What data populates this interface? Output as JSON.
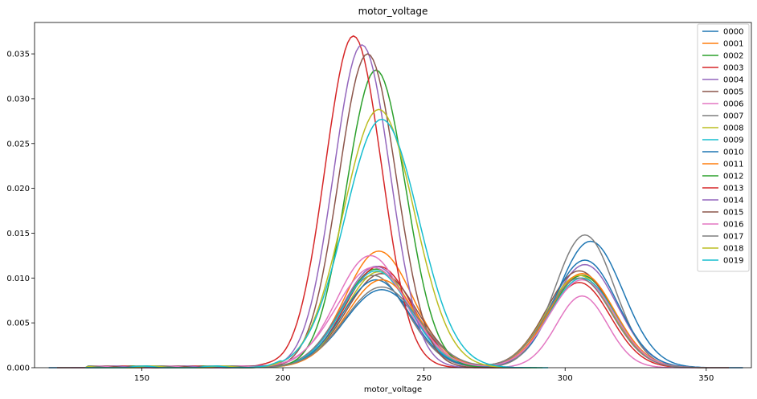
{
  "chart_data": {
    "type": "line",
    "title": "motor_voltage",
    "xlabel": "motor_voltage",
    "ylabel": "",
    "xlim": [
      112,
      366
    ],
    "ylim": [
      0,
      0.0385
    ],
    "xticks": [
      150,
      200,
      250,
      300,
      350
    ],
    "yticks": [
      0.0,
      0.005,
      0.01,
      0.015,
      0.02,
      0.025,
      0.03,
      0.035
    ],
    "ytick_labels": [
      "0.000",
      "0.005",
      "0.010",
      "0.015",
      "0.020",
      "0.025",
      "0.030",
      "0.035"
    ],
    "grid": false,
    "legend_position": "top-right",
    "series": [
      {
        "name": "0000",
        "color": "#1f77b4",
        "peak1": {
          "mu": 235,
          "sigma": 13,
          "h": 0.0087
        },
        "peak2": {
          "mu": 309,
          "sigma": 11.5,
          "h": 0.0141
        },
        "xmin": 117,
        "xmax": 363
      },
      {
        "name": "0001",
        "color": "#ff7f0e",
        "peak1": {
          "mu": 234,
          "sigma": 12,
          "h": 0.013
        },
        "peak2": {
          "mu": 306,
          "sigma": 11.5,
          "h": 0.0103
        },
        "xmin": 120,
        "xmax": 358
      },
      {
        "name": "0002",
        "color": "#2ca02c",
        "peak1": {
          "mu": 233,
          "sigma": 12,
          "h": 0.011
        },
        "peak2": {
          "mu": 306,
          "sigma": 11.5,
          "h": 0.0103
        },
        "xmin": 120,
        "xmax": 358
      },
      {
        "name": "0003",
        "color": "#d62728",
        "peak1": {
          "mu": 234,
          "sigma": 12,
          "h": 0.0113
        },
        "peak2": {
          "mu": 305,
          "sigma": 11,
          "h": 0.0095
        },
        "xmin": 120,
        "xmax": 358
      },
      {
        "name": "0004",
        "color": "#9467bd",
        "peak1": {
          "mu": 233,
          "sigma": 12,
          "h": 0.0113
        },
        "peak2": {
          "mu": 307,
          "sigma": 11.5,
          "h": 0.0115
        },
        "xmin": 120,
        "xmax": 358
      },
      {
        "name": "0005",
        "color": "#8c564b",
        "peak1": {
          "mu": 235,
          "sigma": 12.5,
          "h": 0.0105
        },
        "peak2": {
          "mu": 305,
          "sigma": 11.5,
          "h": 0.0108
        },
        "xmin": 120,
        "xmax": 358
      },
      {
        "name": "0006",
        "color": "#e377c2",
        "peak1": {
          "mu": 231,
          "sigma": 12,
          "h": 0.0125
        },
        "peak2": {
          "mu": 306,
          "sigma": 9,
          "h": 0.008
        },
        "xmin": 120,
        "xmax": 358
      },
      {
        "name": "0007",
        "color": "#7f7f7f",
        "peak1": {
          "mu": 232,
          "sigma": 12,
          "h": 0.0103
        },
        "peak2": {
          "mu": 307,
          "sigma": 10.5,
          "h": 0.0148
        },
        "xmin": 120,
        "xmax": 358
      },
      {
        "name": "0008",
        "color": "#bcbd22",
        "peak1": {
          "mu": 234,
          "sigma": 12,
          "h": 0.0107
        },
        "peak2": {
          "mu": 305,
          "sigma": 11.5,
          "h": 0.0103
        },
        "xmin": 120,
        "xmax": 358
      },
      {
        "name": "0009",
        "color": "#17becf",
        "peak1": {
          "mu": 233,
          "sigma": 12,
          "h": 0.0108
        },
        "peak2": {
          "mu": 306,
          "sigma": 11.5,
          "h": 0.01
        },
        "xmin": 120,
        "xmax": 358
      },
      {
        "name": "0010",
        "color": "#1f77b4",
        "peak1": {
          "mu": 233,
          "sigma": 12,
          "h": 0.0098
        },
        "peak2": {
          "mu": 307,
          "sigma": 11.5,
          "h": 0.012
        },
        "xmin": 120,
        "xmax": 358
      },
      {
        "name": "0011",
        "color": "#ff7f0e",
        "peak1": {
          "mu": 235,
          "sigma": 12.5,
          "h": 0.0098
        },
        "peak2": {
          "mu": 306,
          "sigma": 11.5,
          "h": 0.0105
        },
        "xmin": 120,
        "xmax": 358
      },
      {
        "name": "0012",
        "color": "#2ca02c",
        "peak1": {
          "mu": 233,
          "sigma": 10.5,
          "h": 0.0332
        },
        "peak2": {
          "mu": 260,
          "sigma": 6,
          "h": 0.0
        },
        "xmin": 130,
        "xmax": 290
      },
      {
        "name": "0013",
        "color": "#d62728",
        "peak1": {
          "mu": 225,
          "sigma": 10,
          "h": 0.037
        },
        "peak2": {
          "mu": 260,
          "sigma": 6,
          "h": 0.0
        },
        "xmin": 125,
        "xmax": 285
      },
      {
        "name": "0014",
        "color": "#9467bd",
        "peak1": {
          "mu": 228,
          "sigma": 10,
          "h": 0.036
        },
        "peak2": {
          "mu": 260,
          "sigma": 6,
          "h": 0.0
        },
        "xmin": 125,
        "xmax": 285
      },
      {
        "name": "0015",
        "color": "#8c564b",
        "peak1": {
          "mu": 230,
          "sigma": 10.2,
          "h": 0.035
        },
        "peak2": {
          "mu": 260,
          "sigma": 6,
          "h": 0.0
        },
        "xmin": 125,
        "xmax": 288
      },
      {
        "name": "0016",
        "color": "#e377c2",
        "peak1": {
          "mu": 232,
          "sigma": 13,
          "h": 0.0112
        },
        "peak2": {
          "mu": 306,
          "sigma": 11.5,
          "h": 0.0098
        },
        "xmin": 120,
        "xmax": 358
      },
      {
        "name": "0017",
        "color": "#7f7f7f",
        "peak1": {
          "mu": 235,
          "sigma": 13,
          "h": 0.009
        },
        "peak2": {
          "mu": 305,
          "sigma": 11.5,
          "h": 0.01
        },
        "xmin": 120,
        "xmax": 358
      },
      {
        "name": "0018",
        "color": "#bcbd22",
        "peak1": {
          "mu": 234,
          "sigma": 12.5,
          "h": 0.0288
        },
        "peak2": {
          "mu": 262,
          "sigma": 6,
          "h": 0.0
        },
        "xmin": 130,
        "xmax": 292
      },
      {
        "name": "0019",
        "color": "#17becf",
        "peak1": {
          "mu": 235,
          "sigma": 13,
          "h": 0.0277
        },
        "peak2": {
          "mu": 262,
          "sigma": 6,
          "h": 0.0
        },
        "xmin": 130,
        "xmax": 294
      }
    ]
  }
}
